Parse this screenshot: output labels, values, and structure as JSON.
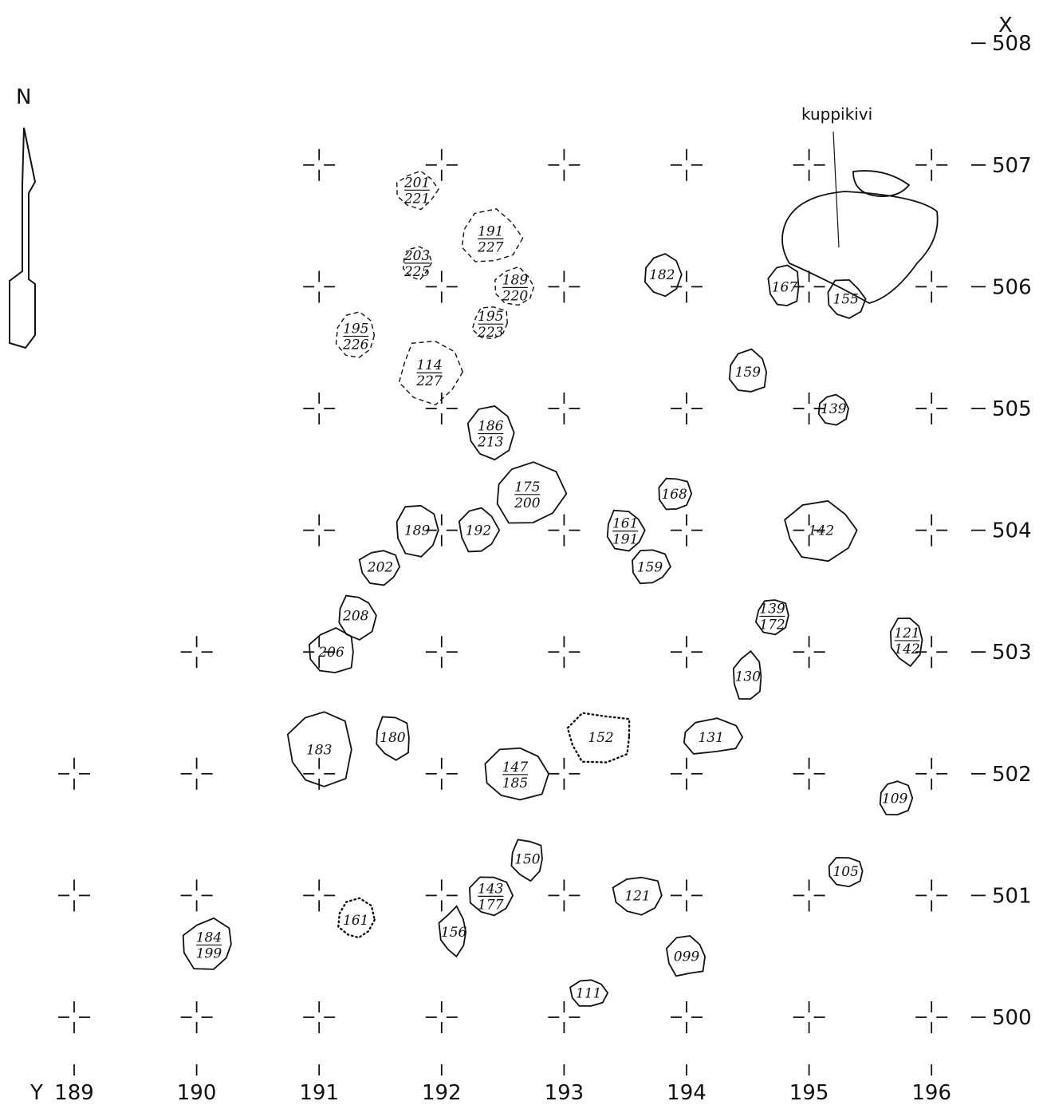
{
  "map": {
    "north_label": "N",
    "x_axis_label": "X",
    "y_axis_label": "Y",
    "feature_label": "kuppikivi",
    "x_ticks": [
      "508",
      "507",
      "506",
      "505",
      "504",
      "503",
      "502",
      "501",
      "500"
    ],
    "y_ticks": [
      "189",
      "190",
      "191",
      "192",
      "193",
      "194",
      "195",
      "196"
    ],
    "stones": [
      {
        "kind": "solid",
        "label": "183",
        "gy": 191.0,
        "gx": 502.2,
        "rx": 40,
        "ry": 52
      },
      {
        "kind": "solid",
        "label": "180",
        "gy": 191.6,
        "gx": 502.3,
        "rx": 24,
        "ry": 28
      },
      {
        "kind": "solid",
        "label": "147/185",
        "gy": 192.6,
        "gx": 502.0,
        "rx": 42,
        "ry": 38
      },
      {
        "kind": "dotted",
        "label": "152",
        "gy": 193.3,
        "gx": 502.3,
        "rx": 42,
        "ry": 32
      },
      {
        "kind": "solid",
        "label": "131",
        "gy": 194.2,
        "gx": 502.3,
        "rx": 40,
        "ry": 22
      },
      {
        "kind": "solid",
        "label": "130",
        "gy": 194.5,
        "gx": 502.8,
        "rx": 20,
        "ry": 30
      },
      {
        "kind": "solid",
        "label": "142",
        "gy": 195.1,
        "gx": 504.0,
        "rx": 46,
        "ry": 36
      },
      {
        "kind": "solid",
        "label": "175/200",
        "gy": 192.7,
        "gx": 504.3,
        "rx": 44,
        "ry": 40
      },
      {
        "kind": "solid",
        "label": "189",
        "gy": 191.8,
        "gx": 504.0,
        "rx": 28,
        "ry": 32
      },
      {
        "kind": "solid",
        "label": "192",
        "gy": 192.3,
        "gx": 504.0,
        "rx": 24,
        "ry": 30
      },
      {
        "kind": "solid",
        "label": "161/191",
        "gy": 193.5,
        "gx": 504.0,
        "rx": 26,
        "ry": 26
      },
      {
        "kind": "solid",
        "label": "159",
        "gy": 193.7,
        "gx": 503.7,
        "rx": 24,
        "ry": 24
      },
      {
        "kind": "solid",
        "label": "202",
        "gy": 191.5,
        "gx": 503.7,
        "rx": 26,
        "ry": 24
      },
      {
        "kind": "solid",
        "label": "208",
        "gy": 191.3,
        "gx": 503.3,
        "rx": 24,
        "ry": 28
      },
      {
        "kind": "solid",
        "label": "206",
        "gy": 191.1,
        "gx": 503.0,
        "rx": 30,
        "ry": 28
      },
      {
        "kind": "solid",
        "label": "186/213",
        "gy": 192.4,
        "gx": 504.8,
        "rx": 28,
        "ry": 32
      },
      {
        "kind": "solid",
        "label": "159",
        "gy": 194.5,
        "gx": 505.3,
        "rx": 26,
        "ry": 28
      },
      {
        "kind": "solid",
        "label": "155",
        "gy": 195.3,
        "gx": 505.9,
        "rx": 24,
        "ry": 24
      },
      {
        "kind": "solid",
        "label": "167",
        "gy": 194.8,
        "gx": 506.0,
        "rx": 20,
        "ry": 28
      },
      {
        "kind": "solid",
        "label": "182",
        "gy": 193.8,
        "gx": 506.1,
        "rx": 24,
        "ry": 28
      },
      {
        "kind": "solid",
        "label": "121/142",
        "gy": 195.8,
        "gx": 503.1,
        "rx": 22,
        "ry": 30
      },
      {
        "kind": "solid",
        "label": "121",
        "gy": 193.6,
        "gx": 501.0,
        "rx": 30,
        "ry": 26
      },
      {
        "kind": "solid",
        "label": "150",
        "gy": 192.7,
        "gx": 501.3,
        "rx": 22,
        "ry": 26
      },
      {
        "kind": "solid",
        "label": "143/177",
        "gy": 192.4,
        "gx": 501.0,
        "rx": 28,
        "ry": 28
      },
      {
        "kind": "solid",
        "label": "156",
        "gy": 192.1,
        "gx": 500.7,
        "rx": 18,
        "ry": 30
      },
      {
        "kind": "dotted",
        "label": "161",
        "gy": 191.3,
        "gx": 500.8,
        "rx": 24,
        "ry": 26
      },
      {
        "kind": "solid",
        "label": "184/199",
        "gy": 190.1,
        "gx": 500.6,
        "rx": 34,
        "ry": 32
      },
      {
        "kind": "solid",
        "label": "099",
        "gy": 194.0,
        "gx": 500.5,
        "rx": 24,
        "ry": 26
      },
      {
        "kind": "solid",
        "label": "109",
        "gy": 195.7,
        "gx": 501.8,
        "rx": 20,
        "ry": 22
      },
      {
        "kind": "solid",
        "label": "105",
        "gy": 195.3,
        "gx": 501.2,
        "rx": 22,
        "ry": 18
      },
      {
        "kind": "solid",
        "label": "111",
        "gy": 193.2,
        "gx": 500.2,
        "rx": 22,
        "ry": 18
      },
      {
        "kind": "solid",
        "label": "139",
        "gy": 195.2,
        "gx": 505.0,
        "rx": 20,
        "ry": 20
      },
      {
        "kind": "solid",
        "label": "168",
        "gy": 193.9,
        "gx": 504.3,
        "rx": 20,
        "ry": 22
      },
      {
        "kind": "solid",
        "label": "139/172",
        "gy": 194.7,
        "gx": 503.3,
        "rx": 22,
        "ry": 24
      },
      {
        "kind": "dashed",
        "label": "191/227",
        "gy": 192.4,
        "gx": 506.4,
        "rx": 38,
        "ry": 34
      },
      {
        "kind": "dashed",
        "label": "189/220",
        "gy": 192.6,
        "gx": 506.0,
        "rx": 26,
        "ry": 24
      },
      {
        "kind": "dashed",
        "label": "114/227",
        "gy": 191.9,
        "gx": 505.3,
        "rx": 40,
        "ry": 38
      },
      {
        "kind": "dashed",
        "label": "195/226",
        "gy": 191.3,
        "gx": 505.6,
        "rx": 26,
        "ry": 30
      },
      {
        "kind": "dashed",
        "label": "201/221",
        "gy": 191.8,
        "gx": 506.8,
        "rx": 26,
        "ry": 24
      },
      {
        "kind": "dashed",
        "label": "195/223",
        "gy": 192.4,
        "gx": 505.7,
        "rx": 24,
        "ry": 22
      },
      {
        "kind": "dashed",
        "label": "203/225",
        "gy": 191.8,
        "gx": 506.2,
        "rx": 18,
        "ry": 22
      }
    ]
  }
}
